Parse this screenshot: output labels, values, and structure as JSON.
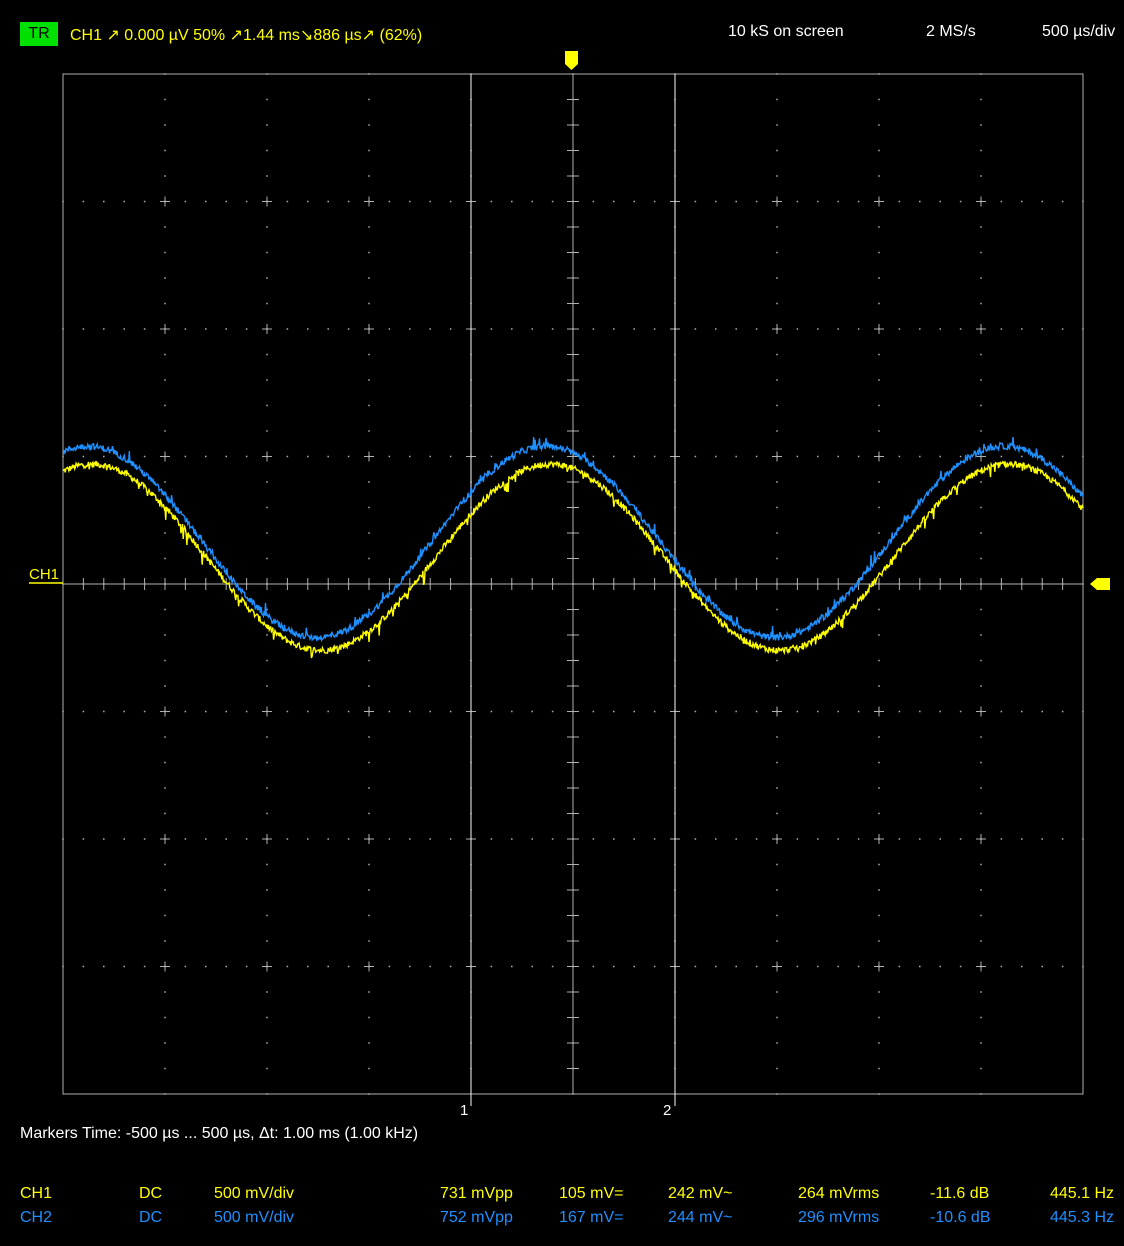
{
  "header": {
    "trigger_badge": "TR",
    "trigger_info": "CH1 ↗ 0.000 µV  50%  ↗1.44 ms↘886 µs↗ (62%)",
    "samples": "10 kS on screen",
    "rate": "2 MS/s",
    "timebase": "500 µs/div"
  },
  "screen": {
    "ch1_marker_label": "CH1",
    "marker1_label": "1",
    "marker2_label": "2",
    "colors": {
      "ch1": "#ffff00",
      "ch2": "#1e90ff",
      "grid": "#b0b0b0",
      "badge": "#00e000"
    }
  },
  "markers": {
    "text": "Markers  Time: -500 µs ... 500 µs,  Δt: 1.00 ms (1.00 kHz)"
  },
  "channels": [
    {
      "name": "CH1",
      "coupling": "DC",
      "scale": "500 mV/div",
      "vpp": "731 mVpp",
      "mean": "105 mV=",
      "ac": "242 mV~",
      "rms": "264 mVrms",
      "db": "-11.6 dB",
      "freq": "445.1 Hz"
    },
    {
      "name": "CH2",
      "coupling": "DC",
      "scale": "500 mV/div",
      "vpp": "752 mVpp",
      "mean": "167 mV=",
      "ac": "244 mV~",
      "rms": "296 mVrms",
      "db": "-10.6 dB",
      "freq": "445.3 Hz"
    }
  ],
  "chart_data": {
    "type": "line",
    "x_unit": "ms",
    "xlim": [
      -2.0,
      3.0
    ],
    "ylim": [
      -4,
      4
    ],
    "y_unit": "div",
    "series": [
      {
        "name": "CH1",
        "frequency_hz": 445.1,
        "amplitude_div": 0.73,
        "offset_div": 0.21,
        "phase_zero_ms": -2.42
      },
      {
        "name": "CH2",
        "frequency_hz": 445.3,
        "amplitude_div": 0.75,
        "offset_div": 0.33,
        "phase_zero_ms": -2.44
      }
    ]
  }
}
